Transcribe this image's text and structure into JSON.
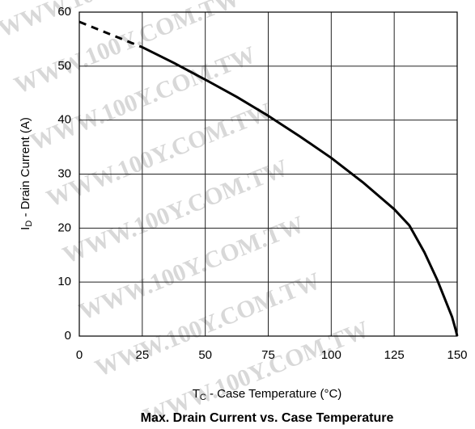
{
  "chart_data": {
    "type": "line",
    "title": "Max. Drain Current vs. Case Temperature",
    "xlabel": {
      "main": "T",
      "sub": "C",
      "rest": " - Case Temperature (°C)"
    },
    "ylabel": {
      "main": "I",
      "sub": "D",
      "rest": " - Drain Current (A)"
    },
    "watermark": "WWW.100Y.COM.TW",
    "xlim": [
      0,
      150
    ],
    "xticks": [
      0,
      25,
      50,
      75,
      100,
      125,
      150
    ],
    "ylim": [
      0,
      60
    ],
    "yticks": [
      0,
      10,
      20,
      30,
      40,
      50,
      60
    ],
    "grid": true,
    "series": [
      {
        "color": "#000000",
        "dashed": true,
        "x": [
          0,
          25
        ],
        "values": [
          58.2,
          53.5
        ]
      },
      {
        "color": "#000000",
        "dashed": false,
        "x": [
          25,
          37.5,
          50,
          62.5,
          75,
          87.5,
          100,
          112.5,
          125,
          131,
          137,
          142,
          145,
          148,
          149.5,
          150
        ],
        "values": [
          53.5,
          50.6,
          47.5,
          44.3,
          40.8,
          37.0,
          33.0,
          28.5,
          23.5,
          20.5,
          15.5,
          10.5,
          7,
          3.5,
          1.0,
          0
        ]
      }
    ]
  }
}
